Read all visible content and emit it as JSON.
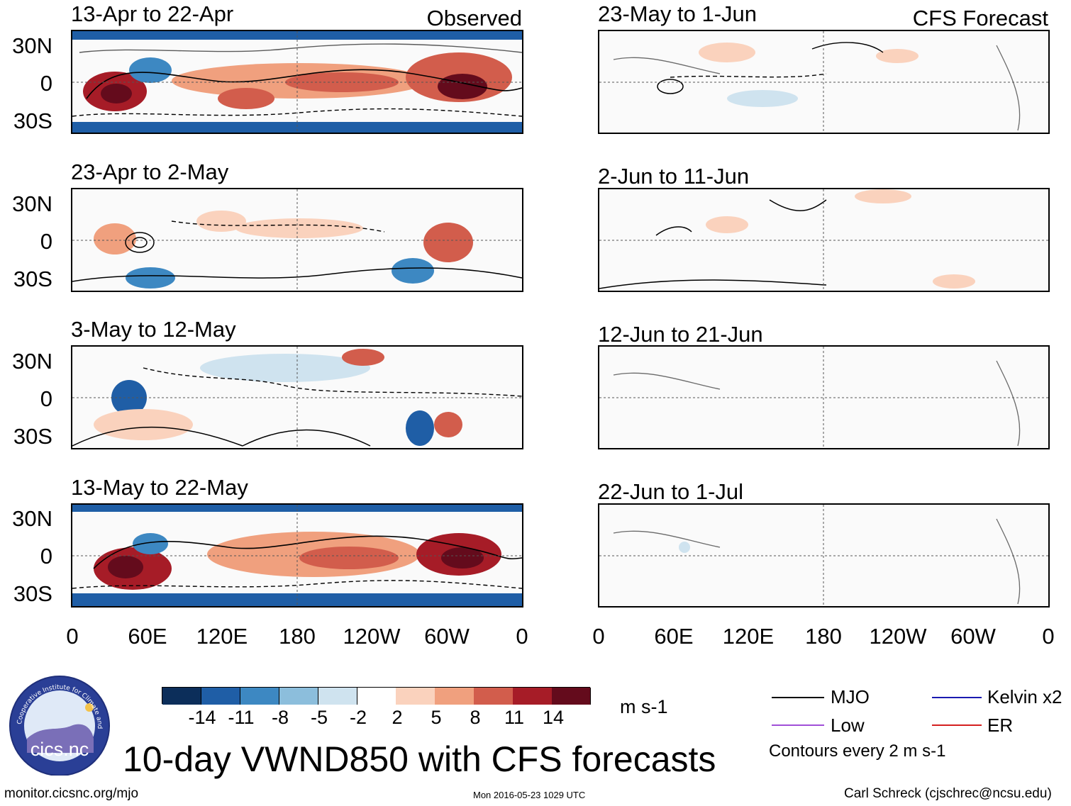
{
  "headers": {
    "observed": "Observed",
    "forecast": "CFS Forecast"
  },
  "observed_panels": [
    {
      "title": "13-Apr to 22-Apr"
    },
    {
      "title": "23-Apr to 2-May"
    },
    {
      "title": "3-May to 12-May"
    },
    {
      "title": "13-May to 22-May"
    }
  ],
  "forecast_panels": [
    {
      "title": "23-May to 1-Jun"
    },
    {
      "title": "2-Jun to 11-Jun"
    },
    {
      "title": "12-Jun to 21-Jun"
    },
    {
      "title": "22-Jun to 1-Jul"
    }
  ],
  "lat_labels": [
    "30N",
    "0",
    "30S"
  ],
  "lon_labels": [
    "0",
    "60E",
    "120E",
    "180",
    "120W",
    "60W",
    "0"
  ],
  "colorbar": {
    "colors": [
      "#0c2e5a",
      "#1f5ea6",
      "#3d88c2",
      "#8cbedc",
      "#cfe3ef",
      "#ffffff",
      "#fad2bd",
      "#f0a07e",
      "#d25d4c",
      "#a61c27",
      "#640b1c"
    ],
    "ticks": [
      "-14",
      "-11",
      "-8",
      "-5",
      "-2",
      "2",
      "5",
      "8",
      "11",
      "14"
    ],
    "units": "m s-1"
  },
  "legend": {
    "items": [
      {
        "label": "MJO",
        "color": "#000000"
      },
      {
        "label": "Kelvin x2",
        "color": "#1a1ab0"
      },
      {
        "label": "Low",
        "color": "#a04fd8"
      },
      {
        "label": "ER",
        "color": "#d42020"
      }
    ],
    "contours_note": "Contours every 2 m s-1"
  },
  "logo": {
    "text": "cics.nc",
    "ring_text": "Cooperative Institute for Climate and Satellites"
  },
  "main_title": "10-day VWND850 with CFS forecasts",
  "footer": {
    "url": "monitor.cicsnc.org/mjo",
    "timestamp": "Mon 2016-05-23 1029 UTC",
    "author": "Carl Schreck (cjschrec@ncsu.edu)"
  }
}
